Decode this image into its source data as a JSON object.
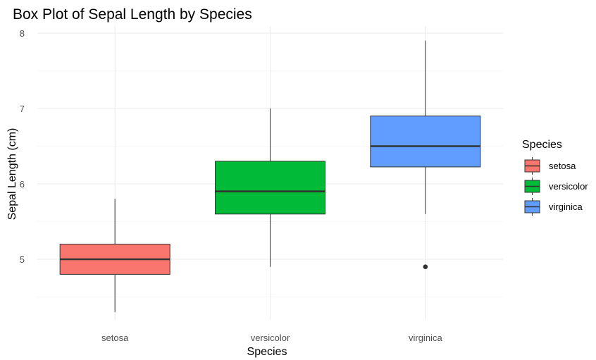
{
  "chart_data": {
    "type": "boxplot",
    "title": "Box Plot of Sepal Length by Species",
    "xlabel": "Species",
    "ylabel": "Sepal Length (cm)",
    "ylim": [
      4.2,
      8.1
    ],
    "yticks": [
      5,
      6,
      7,
      8
    ],
    "grid": true,
    "legend": {
      "title": "Species",
      "position": "right"
    },
    "categories": [
      "setosa",
      "versicolor",
      "virginica"
    ],
    "series": [
      {
        "name": "setosa",
        "color": "#F8766D",
        "min": 4.3,
        "q1": 4.8,
        "median": 5.0,
        "q3": 5.2,
        "max": 5.8,
        "outliers": []
      },
      {
        "name": "versicolor",
        "color": "#00BA38",
        "min": 4.9,
        "q1": 5.6,
        "median": 5.9,
        "q3": 6.3,
        "max": 7.0,
        "outliers": []
      },
      {
        "name": "virginica",
        "color": "#619CFF",
        "min": 5.6,
        "q1": 6.225,
        "median": 6.5,
        "q3": 6.9,
        "max": 7.9,
        "outliers": [
          4.9
        ]
      }
    ]
  }
}
